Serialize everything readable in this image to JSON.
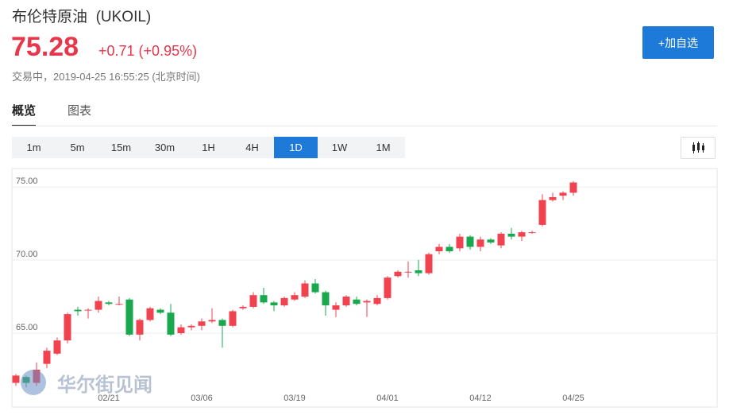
{
  "header": {
    "title": "布伦特原油",
    "symbol": "(UKOIL)",
    "price": "75.28",
    "change": "+0.71 (+0.95%)",
    "status": "交易中，2019-04-25 16:55:25 (北京时间)"
  },
  "add_button": "+加自选",
  "tabs": [
    "概览",
    "图表"
  ],
  "intervals": [
    "1m",
    "5m",
    "15m",
    "30m",
    "1H",
    "4H",
    "1D",
    "1W",
    "1M"
  ],
  "selected_interval": "1D",
  "watermark": "华尔街见闻",
  "chart_data": {
    "type": "candlestick",
    "categories": [
      null,
      null,
      null,
      null,
      null,
      null,
      null,
      null,
      null,
      "02/21",
      null,
      null,
      null,
      null,
      null,
      null,
      null,
      null,
      "03/06",
      null,
      null,
      null,
      null,
      null,
      null,
      null,
      null,
      "03/19",
      null,
      null,
      null,
      null,
      null,
      null,
      null,
      null,
      "04/01",
      null,
      null,
      null,
      null,
      null,
      null,
      null,
      null,
      "04/12",
      null,
      null,
      null,
      null,
      null,
      null,
      null,
      null,
      "04/25"
    ],
    "open": [
      61.6,
      62.0,
      61.6,
      62.9,
      63.6,
      64.5,
      66.6,
      66.6,
      66.6,
      67.1,
      67.0,
      67.3,
      64.9,
      65.9,
      66.6,
      66.4,
      65.0,
      65.4,
      65.5,
      65.8,
      65.9,
      65.5,
      66.7,
      66.8,
      67.6,
      67.1,
      66.9,
      67.3,
      67.5,
      68.4,
      67.8,
      66.6,
      66.9,
      67.3,
      67.1,
      67.0,
      67.4,
      68.9,
      69.2,
      69.3,
      69.1,
      70.6,
      70.9,
      70.8,
      71.6,
      70.9,
      71.4,
      71.0,
      71.8,
      71.6,
      71.9,
      72.4,
      74.1,
      74.4,
      74.6
    ],
    "high": [
      62.2,
      62.1,
      63.0,
      64.0,
      64.7,
      66.4,
      66.8,
      66.7,
      67.5,
      67.2,
      67.5,
      67.4,
      66.0,
      66.8,
      66.7,
      67.0,
      65.6,
      65.6,
      66.0,
      66.7,
      66.0,
      66.6,
      66.9,
      67.8,
      68.1,
      67.2,
      67.5,
      67.8,
      68.6,
      68.7,
      67.9,
      67.1,
      67.6,
      67.5,
      67.3,
      67.6,
      68.9,
      69.3,
      69.9,
      70.0,
      70.5,
      71.1,
      71.1,
      71.8,
      71.7,
      71.6,
      71.5,
      71.9,
      72.2,
      72.0,
      72.0,
      74.5,
      74.6,
      74.7,
      75.4
    ],
    "low": [
      61.4,
      61.3,
      61.4,
      62.6,
      63.5,
      64.3,
      66.2,
      66.0,
      66.4,
      66.9,
      66.9,
      64.8,
      64.5,
      65.8,
      66.3,
      64.8,
      64.9,
      65.2,
      65.2,
      65.7,
      64.0,
      65.4,
      66.6,
      66.7,
      67.0,
      66.5,
      66.8,
      67.2,
      67.4,
      67.7,
      66.2,
      66.1,
      66.8,
      66.9,
      66.1,
      66.9,
      67.3,
      68.8,
      68.8,
      68.9,
      69.0,
      70.4,
      70.5,
      70.6,
      70.7,
      70.6,
      71.1,
      70.8,
      71.4,
      71.3,
      71.8,
      72.3,
      74.0,
      74.1,
      74.4
    ],
    "close": [
      62.1,
      61.6,
      62.5,
      63.8,
      64.5,
      66.3,
      66.5,
      66.6,
      67.2,
      67.0,
      67.0,
      64.9,
      65.9,
      66.7,
      66.4,
      64.9,
      65.4,
      65.5,
      65.8,
      65.9,
      65.5,
      66.5,
      66.8,
      67.6,
      67.1,
      66.9,
      67.4,
      67.6,
      68.4,
      67.8,
      66.9,
      66.9,
      67.5,
      67.0,
      67.2,
      67.4,
      68.8,
      69.2,
      69.2,
      69.1,
      70.4,
      70.9,
      70.6,
      71.6,
      70.9,
      71.4,
      71.2,
      71.8,
      71.6,
      71.9,
      71.9,
      74.1,
      74.3,
      74.6,
      75.3
    ],
    "up_color": "#f0424f",
    "down_color": "#1aa84e",
    "ylim": [
      60,
      76.2
    ],
    "yticks": [
      {
        "value": 65,
        "label": "65.00"
      },
      {
        "value": 70,
        "label": "70.00"
      },
      {
        "value": 75,
        "label": "75.00"
      }
    ],
    "grid": true
  }
}
